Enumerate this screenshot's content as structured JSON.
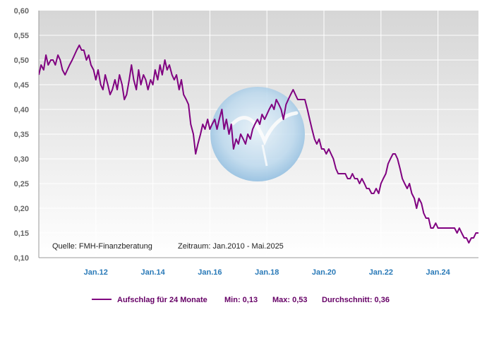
{
  "chart_data": {
    "type": "line",
    "title": "",
    "xlabel": "",
    "ylabel": "",
    "ylim": [
      0.1,
      0.6
    ],
    "xlim": [
      2010.0,
      2025.42
    ],
    "y_ticks": [
      {
        "v": 0.6,
        "label": "0,60"
      },
      {
        "v": 0.55,
        "label": "0,55"
      },
      {
        "v": 0.5,
        "label": "0,50"
      },
      {
        "v": 0.45,
        "label": "0,45"
      },
      {
        "v": 0.4,
        "label": "0,40"
      },
      {
        "v": 0.35,
        "label": "0,35"
      },
      {
        "v": 0.3,
        "label": "0,30"
      },
      {
        "v": 0.25,
        "label": "0,25"
      },
      {
        "v": 0.2,
        "label": "0,20"
      },
      {
        "v": 0.15,
        "label": "0,15"
      },
      {
        "v": 0.1,
        "label": "0,10"
      }
    ],
    "x_ticks": [
      {
        "v": 2012.0,
        "label": "Jan.12"
      },
      {
        "v": 2014.0,
        "label": "Jan.14"
      },
      {
        "v": 2016.0,
        "label": "Jan.16"
      },
      {
        "v": 2018.0,
        "label": "Jan.18"
      },
      {
        "v": 2020.0,
        "label": "Jan.20"
      },
      {
        "v": 2022.0,
        "label": "Jan.22"
      },
      {
        "v": 2024.0,
        "label": "Jan.24"
      }
    ],
    "grid": true,
    "series": [
      {
        "name": "Aufschlag für 24 Monate",
        "color": "#800080",
        "points": [
          [
            2010.0,
            0.47
          ],
          [
            2010.08,
            0.49
          ],
          [
            2010.17,
            0.48
          ],
          [
            2010.25,
            0.51
          ],
          [
            2010.33,
            0.49
          ],
          [
            2010.42,
            0.5
          ],
          [
            2010.5,
            0.5
          ],
          [
            2010.58,
            0.49
          ],
          [
            2010.67,
            0.51
          ],
          [
            2010.75,
            0.5
          ],
          [
            2010.83,
            0.48
          ],
          [
            2010.92,
            0.47
          ],
          [
            2011.0,
            0.48
          ],
          [
            2011.08,
            0.49
          ],
          [
            2011.17,
            0.5
          ],
          [
            2011.25,
            0.51
          ],
          [
            2011.33,
            0.52
          ],
          [
            2011.42,
            0.53
          ],
          [
            2011.5,
            0.52
          ],
          [
            2011.58,
            0.52
          ],
          [
            2011.67,
            0.5
          ],
          [
            2011.75,
            0.51
          ],
          [
            2011.83,
            0.49
          ],
          [
            2011.92,
            0.48
          ],
          [
            2012.0,
            0.46
          ],
          [
            2012.08,
            0.48
          ],
          [
            2012.17,
            0.45
          ],
          [
            2012.25,
            0.44
          ],
          [
            2012.33,
            0.47
          ],
          [
            2012.42,
            0.45
          ],
          [
            2012.5,
            0.43
          ],
          [
            2012.58,
            0.44
          ],
          [
            2012.67,
            0.46
          ],
          [
            2012.75,
            0.44
          ],
          [
            2012.83,
            0.47
          ],
          [
            2012.92,
            0.45
          ],
          [
            2013.0,
            0.42
          ],
          [
            2013.08,
            0.43
          ],
          [
            2013.17,
            0.46
          ],
          [
            2013.25,
            0.49
          ],
          [
            2013.33,
            0.46
          ],
          [
            2013.42,
            0.44
          ],
          [
            2013.5,
            0.48
          ],
          [
            2013.58,
            0.45
          ],
          [
            2013.67,
            0.47
          ],
          [
            2013.75,
            0.46
          ],
          [
            2013.83,
            0.44
          ],
          [
            2013.92,
            0.46
          ],
          [
            2014.0,
            0.45
          ],
          [
            2014.08,
            0.48
          ],
          [
            2014.17,
            0.46
          ],
          [
            2014.25,
            0.49
          ],
          [
            2014.33,
            0.47
          ],
          [
            2014.42,
            0.5
          ],
          [
            2014.5,
            0.48
          ],
          [
            2014.58,
            0.49
          ],
          [
            2014.67,
            0.47
          ],
          [
            2014.75,
            0.46
          ],
          [
            2014.83,
            0.47
          ],
          [
            2014.92,
            0.44
          ],
          [
            2015.0,
            0.46
          ],
          [
            2015.08,
            0.43
          ],
          [
            2015.17,
            0.42
          ],
          [
            2015.25,
            0.41
          ],
          [
            2015.33,
            0.37
          ],
          [
            2015.42,
            0.35
          ],
          [
            2015.5,
            0.31
          ],
          [
            2015.58,
            0.33
          ],
          [
            2015.67,
            0.35
          ],
          [
            2015.75,
            0.37
          ],
          [
            2015.83,
            0.36
          ],
          [
            2015.92,
            0.38
          ],
          [
            2016.0,
            0.36
          ],
          [
            2016.08,
            0.37
          ],
          [
            2016.17,
            0.38
          ],
          [
            2016.25,
            0.36
          ],
          [
            2016.33,
            0.38
          ],
          [
            2016.42,
            0.4
          ],
          [
            2016.5,
            0.36
          ],
          [
            2016.58,
            0.38
          ],
          [
            2016.67,
            0.35
          ],
          [
            2016.75,
            0.37
          ],
          [
            2016.83,
            0.32
          ],
          [
            2016.92,
            0.34
          ],
          [
            2017.0,
            0.33
          ],
          [
            2017.08,
            0.35
          ],
          [
            2017.17,
            0.34
          ],
          [
            2017.25,
            0.33
          ],
          [
            2017.33,
            0.35
          ],
          [
            2017.42,
            0.34
          ],
          [
            2017.5,
            0.36
          ],
          [
            2017.58,
            0.37
          ],
          [
            2017.67,
            0.38
          ],
          [
            2017.75,
            0.37
          ],
          [
            2017.83,
            0.39
          ],
          [
            2017.92,
            0.38
          ],
          [
            2018.0,
            0.39
          ],
          [
            2018.08,
            0.4
          ],
          [
            2018.17,
            0.41
          ],
          [
            2018.25,
            0.4
          ],
          [
            2018.33,
            0.42
          ],
          [
            2018.42,
            0.41
          ],
          [
            2018.5,
            0.4
          ],
          [
            2018.58,
            0.38
          ],
          [
            2018.67,
            0.41
          ],
          [
            2018.75,
            0.42
          ],
          [
            2018.83,
            0.43
          ],
          [
            2018.92,
            0.44
          ],
          [
            2019.0,
            0.43
          ],
          [
            2019.08,
            0.42
          ],
          [
            2019.17,
            0.42
          ],
          [
            2019.25,
            0.42
          ],
          [
            2019.33,
            0.42
          ],
          [
            2019.42,
            0.4
          ],
          [
            2019.5,
            0.38
          ],
          [
            2019.58,
            0.36
          ],
          [
            2019.67,
            0.34
          ],
          [
            2019.75,
            0.33
          ],
          [
            2019.83,
            0.34
          ],
          [
            2019.92,
            0.32
          ],
          [
            2020.0,
            0.32
          ],
          [
            2020.08,
            0.31
          ],
          [
            2020.17,
            0.32
          ],
          [
            2020.25,
            0.31
          ],
          [
            2020.33,
            0.3
          ],
          [
            2020.42,
            0.28
          ],
          [
            2020.5,
            0.27
          ],
          [
            2020.58,
            0.27
          ],
          [
            2020.67,
            0.27
          ],
          [
            2020.75,
            0.27
          ],
          [
            2020.83,
            0.26
          ],
          [
            2020.92,
            0.26
          ],
          [
            2021.0,
            0.27
          ],
          [
            2021.08,
            0.26
          ],
          [
            2021.17,
            0.26
          ],
          [
            2021.25,
            0.25
          ],
          [
            2021.33,
            0.26
          ],
          [
            2021.42,
            0.25
          ],
          [
            2021.5,
            0.24
          ],
          [
            2021.58,
            0.24
          ],
          [
            2021.67,
            0.23
          ],
          [
            2021.75,
            0.23
          ],
          [
            2021.83,
            0.24
          ],
          [
            2021.92,
            0.23
          ],
          [
            2022.0,
            0.25
          ],
          [
            2022.08,
            0.26
          ],
          [
            2022.17,
            0.27
          ],
          [
            2022.25,
            0.29
          ],
          [
            2022.33,
            0.3
          ],
          [
            2022.42,
            0.31
          ],
          [
            2022.5,
            0.31
          ],
          [
            2022.58,
            0.3
          ],
          [
            2022.67,
            0.28
          ],
          [
            2022.75,
            0.26
          ],
          [
            2022.83,
            0.25
          ],
          [
            2022.92,
            0.24
          ],
          [
            2023.0,
            0.25
          ],
          [
            2023.08,
            0.23
          ],
          [
            2023.17,
            0.22
          ],
          [
            2023.25,
            0.2
          ],
          [
            2023.33,
            0.22
          ],
          [
            2023.42,
            0.21
          ],
          [
            2023.5,
            0.19
          ],
          [
            2023.58,
            0.18
          ],
          [
            2023.67,
            0.18
          ],
          [
            2023.75,
            0.16
          ],
          [
            2023.83,
            0.16
          ],
          [
            2023.92,
            0.17
          ],
          [
            2024.0,
            0.16
          ],
          [
            2024.08,
            0.16
          ],
          [
            2024.17,
            0.16
          ],
          [
            2024.25,
            0.16
          ],
          [
            2024.33,
            0.16
          ],
          [
            2024.42,
            0.16
          ],
          [
            2024.5,
            0.16
          ],
          [
            2024.58,
            0.16
          ],
          [
            2024.67,
            0.15
          ],
          [
            2024.75,
            0.16
          ],
          [
            2024.83,
            0.15
          ],
          [
            2024.92,
            0.14
          ],
          [
            2025.0,
            0.14
          ],
          [
            2025.08,
            0.13
          ],
          [
            2025.17,
            0.14
          ],
          [
            2025.25,
            0.14
          ],
          [
            2025.33,
            0.15
          ],
          [
            2025.42,
            0.15
          ]
        ]
      }
    ],
    "annotations": {
      "source": "Quelle: FMH-Finanzberatung",
      "period": "Zeitraum: Jan.2010 - Mai.2025"
    },
    "legend": {
      "placement": "bottom",
      "label": "Aufschlag für 24 Monate",
      "min": "Min: 0,13",
      "max": "Max: 0,53",
      "avg": "Durchschnitt: 0,36"
    },
    "colors": {
      "line": "#800080",
      "plot_bg_top": "#d8d8d8",
      "plot_bg_bottom": "#ffffff",
      "grid": "#ffffff",
      "tick_y": "#666666",
      "tick_x": "#2a7ab8",
      "legend_text": "#660066"
    }
  }
}
